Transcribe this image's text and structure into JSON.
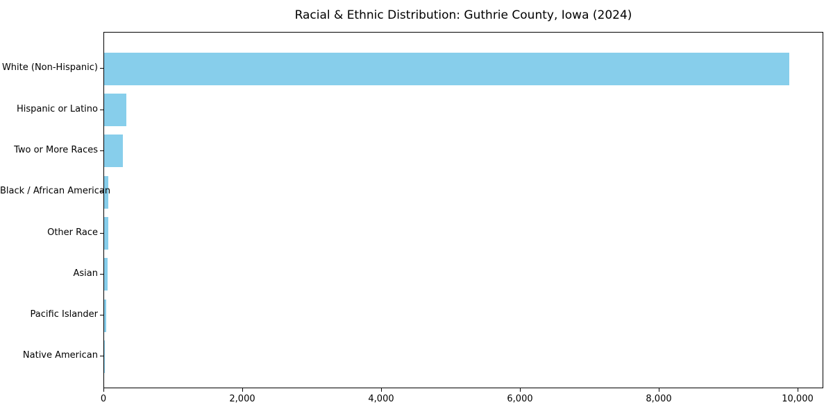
{
  "chart_data": {
    "type": "bar",
    "orientation": "horizontal",
    "title": "Racial & Ethnic Distribution: Guthrie County, Iowa (2024)",
    "categories": [
      "White (Non-Hispanic)",
      "Hispanic or Latino",
      "Two or More Races",
      "Black / African American",
      "Other Race",
      "Asian",
      "Pacific Islander",
      "Native American"
    ],
    "values": [
      9870,
      320,
      265,
      60,
      60,
      50,
      25,
      5
    ],
    "xlabel": "",
    "ylabel": "",
    "xlim": [
      0,
      10370
    ],
    "x_ticks": [
      0,
      2000,
      4000,
      6000,
      8000,
      10000
    ],
    "x_tick_labels": [
      "0",
      "2,000",
      "4,000",
      "6,000",
      "8,000",
      "10,000"
    ],
    "bar_color": "#87CEEB",
    "spine_color": "#000000",
    "grid": false,
    "legend_position": "none"
  }
}
